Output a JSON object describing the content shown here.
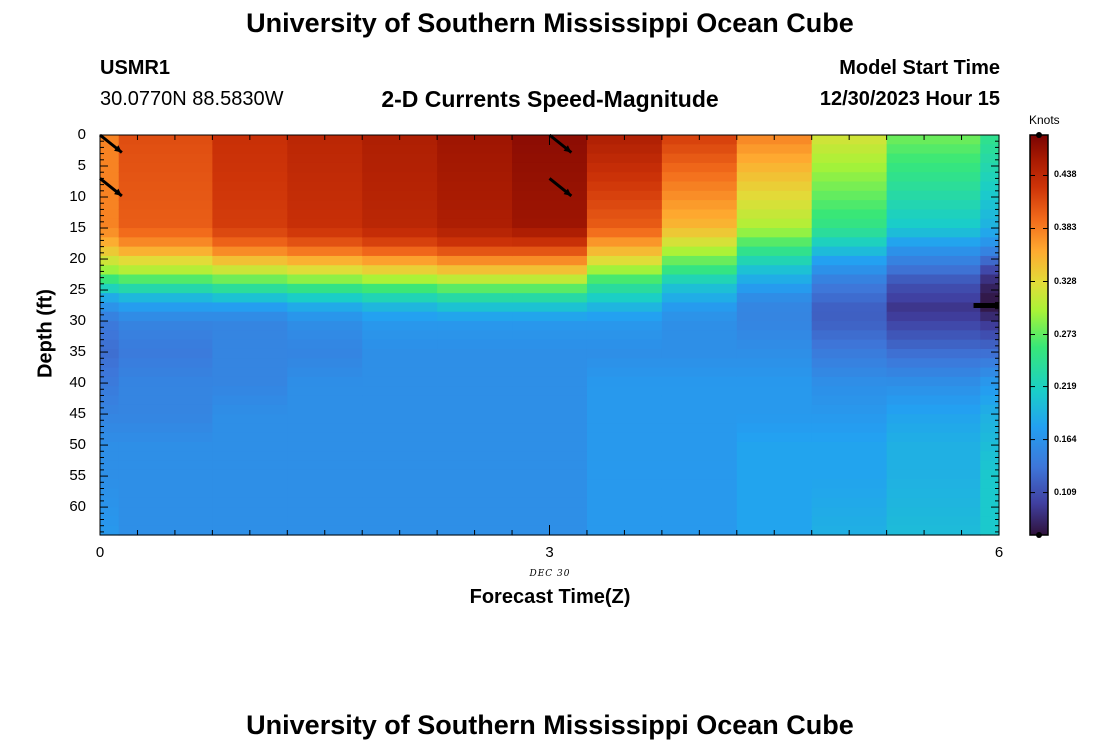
{
  "title": "University of Southern Mississippi Ocean Cube",
  "footer_title": "University of Southern Mississippi Ocean Cube",
  "station": {
    "name": "USMR1",
    "coords": "30.0770N  88.5830W"
  },
  "model": {
    "label": "Model Start Time",
    "time": "12/30/2023 Hour 15"
  },
  "chart_data": {
    "type": "heatmap",
    "title": "2-D Currents Speed-Magnitude",
    "xlabel": "Forecast Time(Z)",
    "ylabel": "Depth (ft)",
    "x_date_label": "DEC  30",
    "xlim": [
      0,
      6
    ],
    "ylim": [
      64.5,
      0
    ],
    "x_ticks": [
      0,
      3,
      6
    ],
    "y_ticks": [
      0,
      5,
      10,
      15,
      20,
      25,
      30,
      35,
      40,
      45,
      50,
      55,
      60
    ],
    "colorbar": {
      "unit": "Knots",
      "ticks": [
        0.109,
        0.164,
        0.219,
        0.273,
        0.328,
        0.383,
        0.438
      ],
      "vmin": 0.065,
      "vmax": 0.48
    },
    "time_steps": [
      0,
      0.5,
      1,
      1.5,
      2,
      2.5,
      3,
      3.5,
      4,
      4.5,
      5,
      5.5,
      6
    ],
    "depth_profile_points": [
      0,
      15,
      18,
      20,
      22,
      24,
      26,
      28,
      30,
      35,
      40,
      45,
      50,
      55,
      64.5
    ],
    "speed_knots": [
      [
        0.38,
        0.38,
        0.35,
        0.32,
        0.29,
        0.24,
        0.19,
        0.16,
        0.14,
        0.13,
        0.14,
        0.15,
        0.16,
        0.16,
        0.17
      ],
      [
        0.41,
        0.4,
        0.37,
        0.33,
        0.3,
        0.25,
        0.2,
        0.17,
        0.15,
        0.14,
        0.15,
        0.15,
        0.16,
        0.16,
        0.16
      ],
      [
        0.43,
        0.42,
        0.39,
        0.35,
        0.31,
        0.26,
        0.21,
        0.17,
        0.15,
        0.15,
        0.15,
        0.16,
        0.16,
        0.16,
        0.16
      ],
      [
        0.44,
        0.43,
        0.4,
        0.36,
        0.32,
        0.27,
        0.22,
        0.18,
        0.16,
        0.15,
        0.16,
        0.16,
        0.16,
        0.16,
        0.16
      ],
      [
        0.45,
        0.44,
        0.41,
        0.37,
        0.33,
        0.28,
        0.23,
        0.19,
        0.17,
        0.16,
        0.16,
        0.16,
        0.16,
        0.16,
        0.16
      ],
      [
        0.46,
        0.45,
        0.42,
        0.38,
        0.34,
        0.29,
        0.24,
        0.2,
        0.17,
        0.16,
        0.16,
        0.16,
        0.16,
        0.16,
        0.16
      ],
      [
        0.47,
        0.46,
        0.42,
        0.38,
        0.34,
        0.29,
        0.24,
        0.2,
        0.17,
        0.16,
        0.16,
        0.16,
        0.16,
        0.16,
        0.16
      ],
      [
        0.45,
        0.4,
        0.36,
        0.33,
        0.29,
        0.25,
        0.22,
        0.19,
        0.17,
        0.16,
        0.17,
        0.17,
        0.17,
        0.17,
        0.17
      ],
      [
        0.42,
        0.35,
        0.31,
        0.28,
        0.25,
        0.21,
        0.19,
        0.17,
        0.16,
        0.16,
        0.17,
        0.17,
        0.17,
        0.17,
        0.17
      ],
      [
        0.38,
        0.3,
        0.26,
        0.23,
        0.2,
        0.18,
        0.16,
        0.15,
        0.15,
        0.16,
        0.17,
        0.17,
        0.18,
        0.18,
        0.18
      ],
      [
        0.32,
        0.25,
        0.21,
        0.18,
        0.16,
        0.14,
        0.13,
        0.12,
        0.12,
        0.14,
        0.16,
        0.17,
        0.18,
        0.18,
        0.19
      ],
      [
        0.28,
        0.21,
        0.17,
        0.15,
        0.13,
        0.11,
        0.1,
        0.09,
        0.1,
        0.13,
        0.16,
        0.18,
        0.19,
        0.19,
        0.2
      ],
      [
        0.25,
        0.19,
        0.16,
        0.13,
        0.1,
        0.08,
        0.07,
        0.07,
        0.09,
        0.13,
        0.17,
        0.19,
        0.2,
        0.21,
        0.21
      ]
    ],
    "vectors": [
      {
        "t": 0,
        "depth": 0,
        "dx": 1,
        "dy": 0.8
      },
      {
        "t": 0,
        "depth": 7,
        "dx": 1,
        "dy": 0.8
      },
      {
        "t": 3,
        "depth": 0,
        "dx": 1,
        "dy": 0.8
      },
      {
        "t": 3,
        "depth": 7,
        "dx": 1,
        "dy": 0.8
      }
    ]
  }
}
